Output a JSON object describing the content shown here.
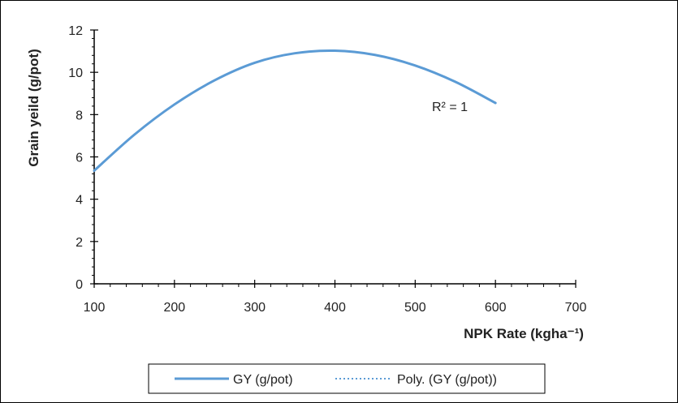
{
  "chart_data": {
    "type": "line",
    "xlabel": "NPK Rate (kgha⁻¹)",
    "ylabel": "Grain yeild (g/pot)",
    "xlim": [
      100,
      700
    ],
    "ylim": [
      0,
      12
    ],
    "x_ticks": [
      100,
      200,
      300,
      400,
      500,
      600,
      700
    ],
    "y_ticks": [
      0,
      2,
      4,
      6,
      8,
      10,
      12
    ],
    "x_tick_labels": [
      "100",
      "200",
      "300",
      "400",
      "500",
      "600",
      "700"
    ],
    "y_tick_labels": [
      "0",
      "2",
      "4",
      "6",
      "8",
      "10",
      "12"
    ],
    "grid": false,
    "legend_position": "bottom",
    "series": [
      {
        "name": "GY (g/pot)",
        "color": "#5B9BD5",
        "style": "solid",
        "x": [
          100,
          150,
          200,
          250,
          300,
          350,
          400,
          450,
          500,
          550,
          600
        ],
        "y": [
          5.35,
          7.05,
          8.48,
          9.62,
          10.45,
          10.9,
          11.02,
          10.82,
          10.32,
          9.55,
          8.55
        ]
      },
      {
        "name": "Poly. (GY (g/pot))",
        "color": "#5B9BD5",
        "style": "dotted",
        "x": [
          100,
          150,
          200,
          250,
          300,
          350,
          400,
          450,
          500,
          550,
          600
        ],
        "y": [
          5.35,
          7.05,
          8.48,
          9.62,
          10.45,
          10.9,
          11.02,
          10.82,
          10.32,
          9.55,
          8.55
        ]
      }
    ],
    "annotations": [
      {
        "text": "R² = 1"
      }
    ]
  }
}
